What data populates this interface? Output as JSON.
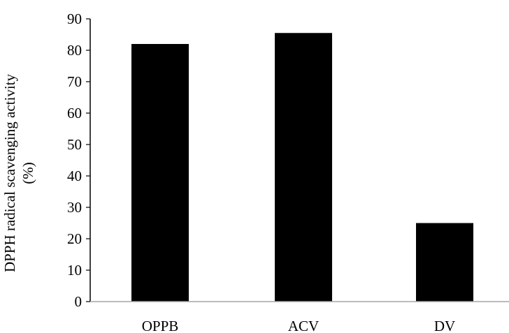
{
  "chart_data": {
    "type": "bar",
    "title": "",
    "xlabel": "",
    "ylabel_lines": [
      "DPPH radical scavenging activity",
      "(%)"
    ],
    "categories": [
      "OPPB",
      "ACV",
      "DV"
    ],
    "values": [
      82,
      85.5,
      25
    ],
    "ylim": [
      0,
      90
    ],
    "yticks": [
      0,
      10,
      20,
      30,
      40,
      50,
      60,
      70,
      80,
      90
    ],
    "grid": false,
    "legend": "none",
    "bar_color": "#000000"
  }
}
